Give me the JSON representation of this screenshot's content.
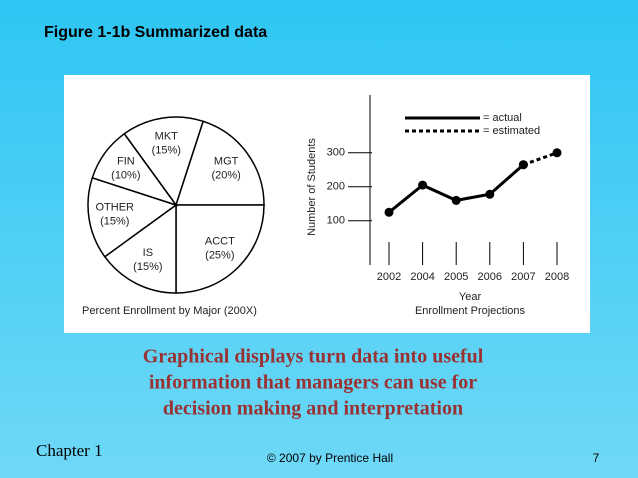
{
  "slide": {
    "title": "Figure 1-1b Summarized data",
    "caption": [
      "Graphical displays turn data into useful",
      "information that managers can use for",
      "decision making and interpretation"
    ],
    "footer": {
      "chapter": "Chapter 1",
      "copyright": "© 2007 by Prentice Hall",
      "page": "7"
    }
  },
  "chart_data": [
    {
      "type": "pie",
      "title": "Percent Enrollment by Major (200X)",
      "categories": [
        "MKT",
        "MGT",
        "ACCT",
        "IS",
        "OTHER",
        "FIN"
      ],
      "values": [
        15,
        20,
        25,
        15,
        15,
        10
      ],
      "value_labels": [
        "(15%)",
        "(20%)",
        "(25%)",
        "(15%)",
        "(15%)",
        "(10%)"
      ],
      "color": "#ffffff",
      "edge_color": "#000000"
    },
    {
      "type": "line",
      "title": "Enrollment Projections",
      "x_label": "Year",
      "y_label": "Number of Students",
      "categories": [
        "2002",
        "2004",
        "2005",
        "2006",
        "2007",
        "2008"
      ],
      "series": [
        {
          "name": "= actual",
          "color": "#000000",
          "line_style": "solid",
          "values": [
            125,
            205,
            160,
            178,
            265,
            null
          ]
        },
        {
          "name": "= estimated",
          "color": "#000000",
          "line_style": "dashed",
          "values": [
            null,
            null,
            null,
            null,
            265,
            300
          ]
        }
      ],
      "ylim": [
        -30,
        470
      ],
      "yticks": [
        100,
        200,
        300
      ],
      "legend": "upper right"
    }
  ]
}
